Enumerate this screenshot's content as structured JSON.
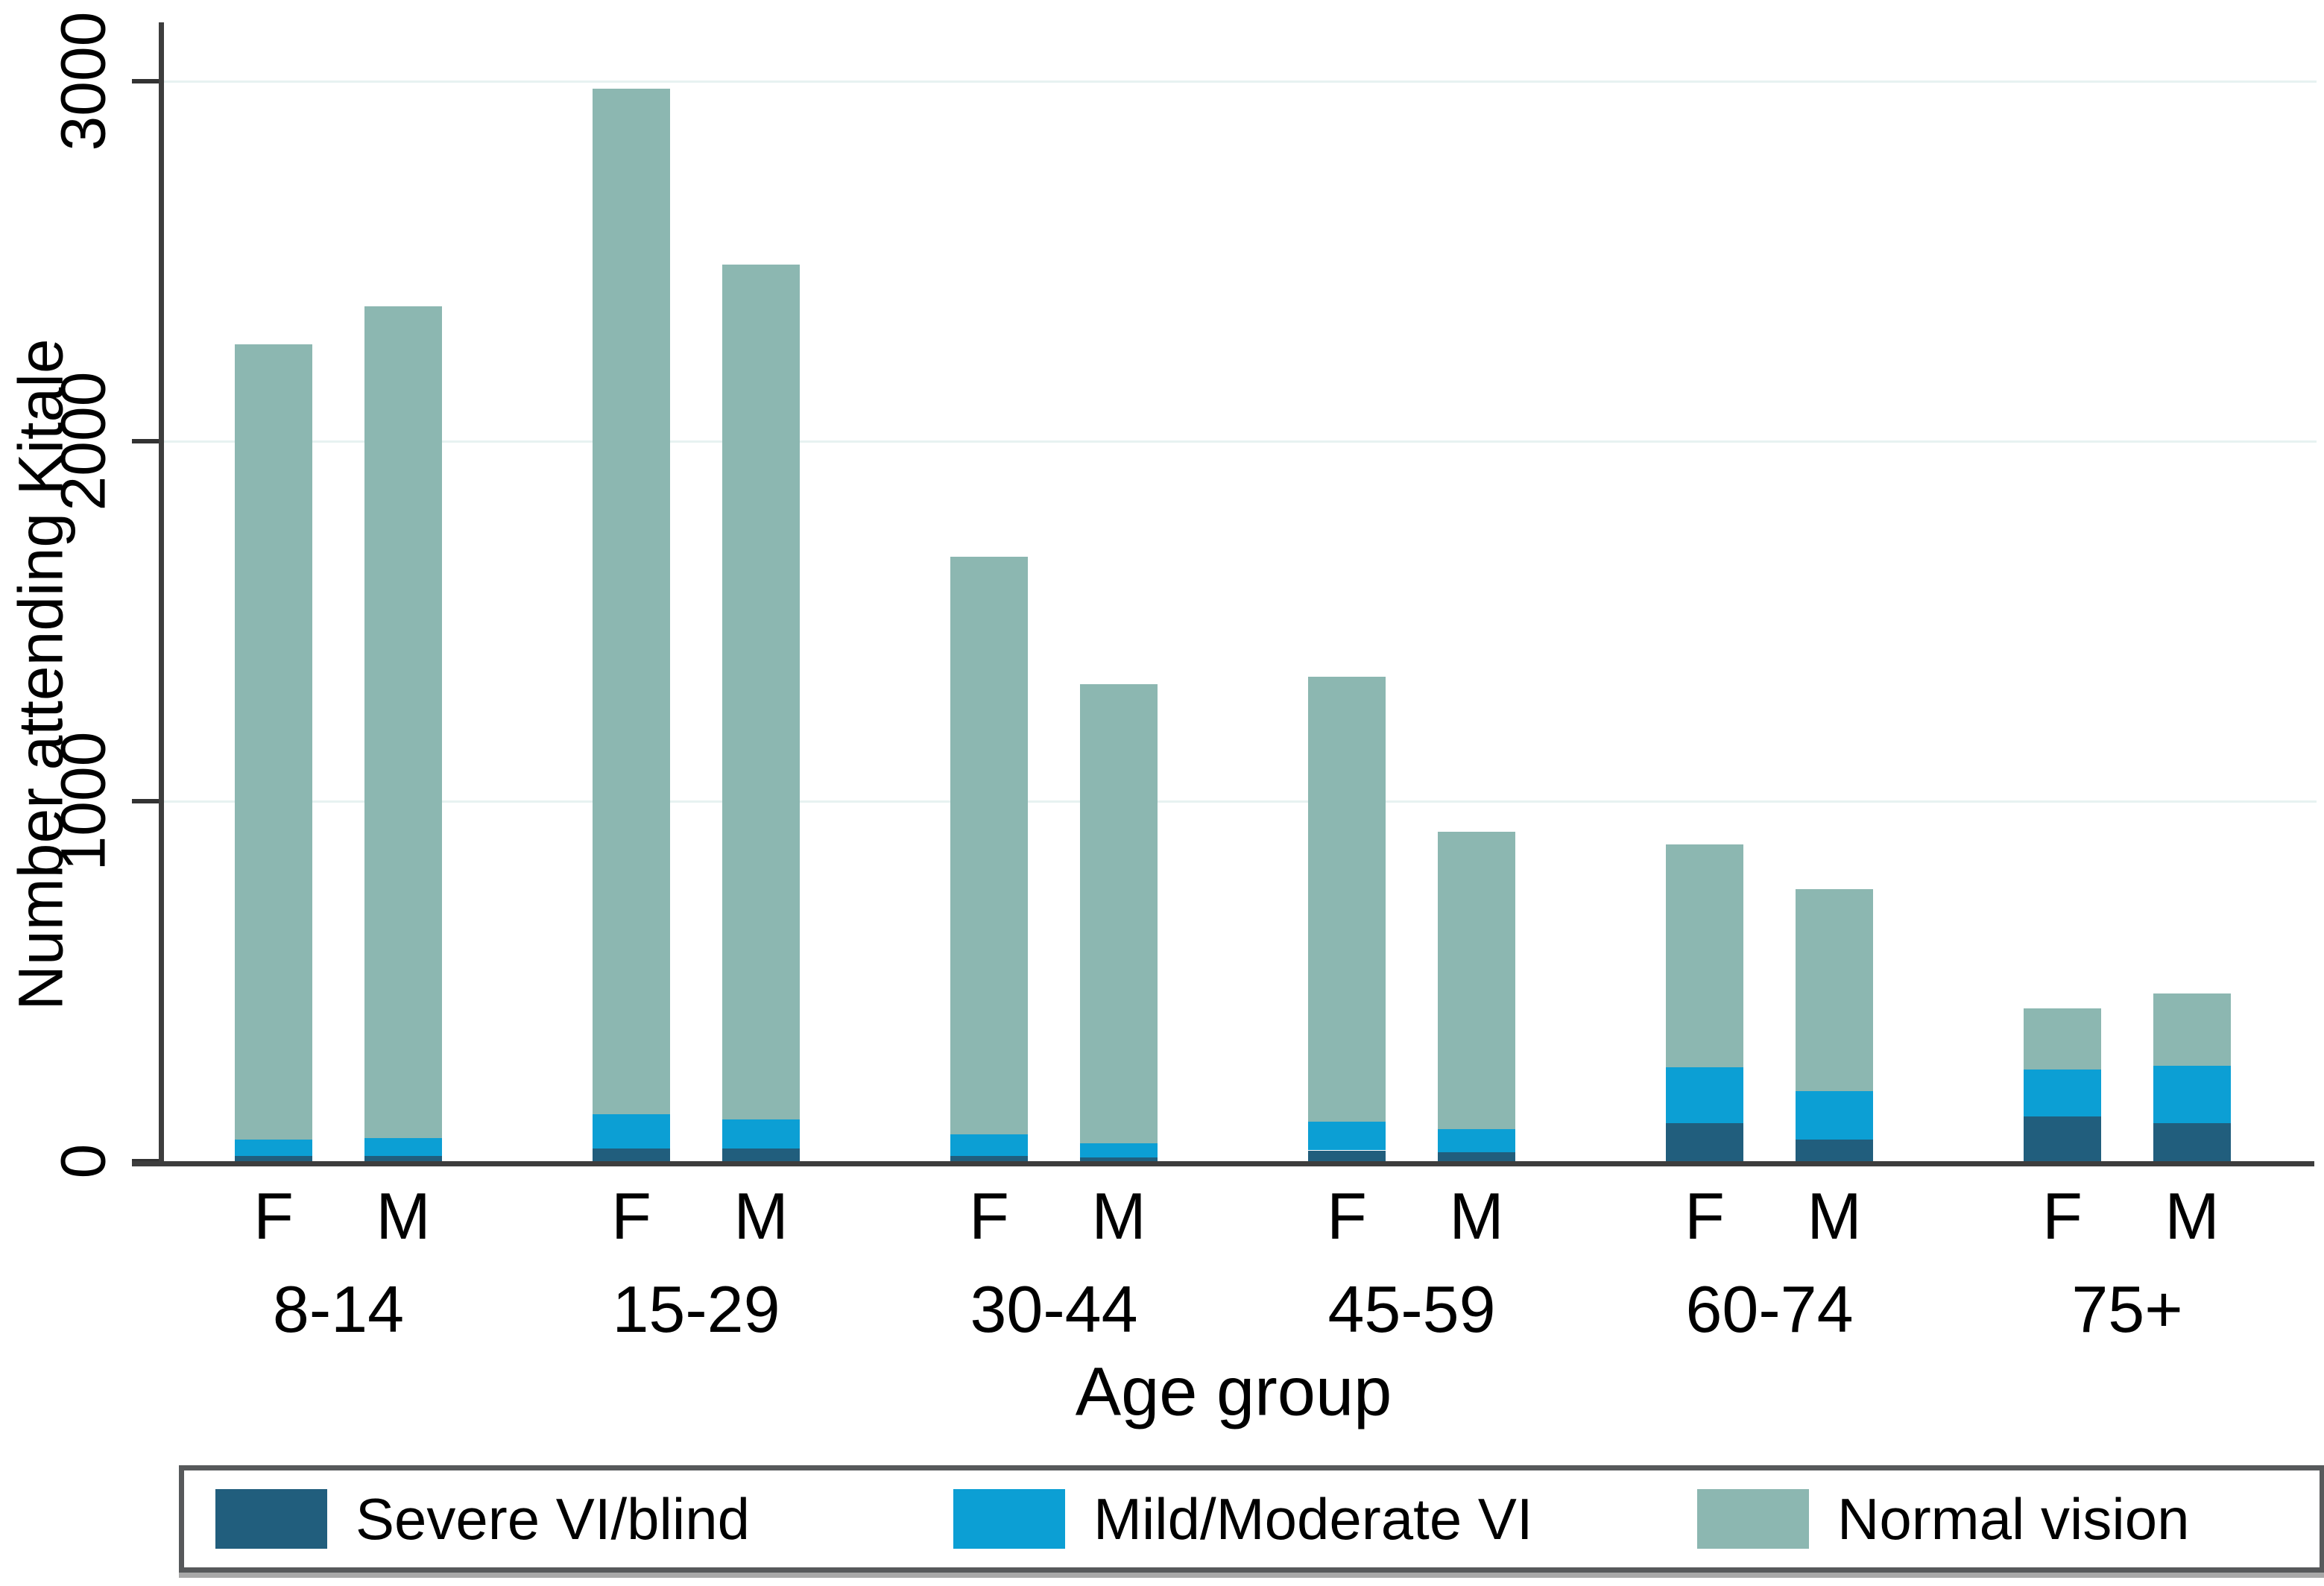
{
  "chart_data": {
    "type": "bar",
    "stacked": true,
    "title": "",
    "ylabel": "Number attending Kitale",
    "xlabel": "Age group",
    "ylim": [
      0,
      3100
    ],
    "yticks": [
      0,
      1000,
      2000,
      3000
    ],
    "grid": "horizontal-light",
    "legend_position": "bottom",
    "age_groups": [
      "8-14",
      "15-29",
      "30-44",
      "45-59",
      "60-74",
      "75+"
    ],
    "bar_labels": [
      "F",
      "M"
    ],
    "series": [
      {
        "name": "Severe VI/blind",
        "color": "#215e7d",
        "F": [
          15,
          35,
          15,
          30,
          105,
          125
        ],
        "M": [
          15,
          35,
          10,
          25,
          60,
          105
        ]
      },
      {
        "name": "Mild/Moderate VI",
        "color": "#0c9fd4",
        "F": [
          45,
          95,
          60,
          80,
          155,
          130
        ],
        "M": [
          50,
          80,
          40,
          65,
          135,
          160
        ]
      },
      {
        "name": "Normal vision",
        "color": "#8cb7b1",
        "F": [
          2210,
          2850,
          1605,
          1235,
          620,
          170
        ],
        "M": [
          2310,
          2375,
          1275,
          825,
          560,
          200
        ]
      }
    ],
    "totals": {
      "F": [
        2270,
        2980,
        1680,
        1345,
        880,
        425
      ],
      "M": [
        2375,
        2490,
        1325,
        915,
        755,
        465
      ]
    }
  }
}
